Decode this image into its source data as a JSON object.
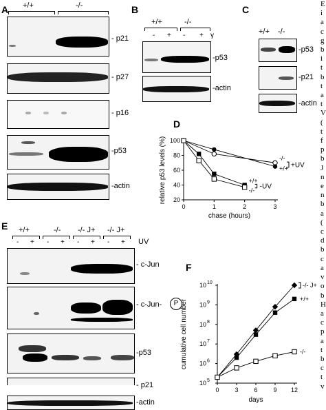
{
  "panels": {
    "A": {
      "letter": "A",
      "genotypes": [
        "+/+",
        "-/-"
      ],
      "blots": [
        "- p21",
        "- p27",
        "- p16",
        "-p53",
        "-actin"
      ]
    },
    "B": {
      "letter": "B",
      "genotypes": [
        "+/+",
        "-/-"
      ],
      "treatment_signs": [
        "-",
        "+",
        "-",
        "+"
      ],
      "treatment_label": "γ",
      "blots": [
        "-p53",
        "-actin"
      ]
    },
    "C": {
      "letter": "C",
      "genotypes": [
        "+/+",
        "-/-"
      ],
      "blots": [
        "-p53",
        "-p21",
        "-actin"
      ]
    },
    "D": {
      "letter": "D",
      "chart_data": {
        "type": "line",
        "xlabel": "chase (hours)",
        "ylabel": "relative p53 levels (%)",
        "xlim": [
          0,
          3
        ],
        "ylim": [
          20,
          100
        ],
        "xticks": [
          "0",
          "1",
          "2",
          "3"
        ],
        "yticks": [
          "20",
          "40",
          "60",
          "80",
          "100"
        ],
        "series": [
          {
            "name": "-/-",
            "marker": "open-circle",
            "x": [
              0,
              1,
              3
            ],
            "y": [
              100,
              82,
              70
            ]
          },
          {
            "name": "+/+",
            "marker": "filled-circle",
            "x": [
              0,
              1,
              3
            ],
            "y": [
              100,
              88,
              65
            ]
          },
          {
            "name": "+/+",
            "marker": "filled-square",
            "x": [
              0,
              0.5,
              1,
              2
            ],
            "y": [
              100,
              82,
              55,
              40
            ]
          },
          {
            "name": "-/-",
            "marker": "open-square",
            "x": [
              0,
              0.5,
              1,
              2
            ],
            "y": [
              100,
              73,
              48,
              37
            ]
          }
        ],
        "annotations": {
          "uv_plus": "+UV",
          "uv_minus": "-UV"
        }
      }
    },
    "E": {
      "letter": "E",
      "genotypes": [
        "+/+",
        "-/-",
        "-/- J+",
        "-/- J+"
      ],
      "uv_signs": [
        "-",
        "+",
        "-",
        "+",
        "-",
        "+",
        "-",
        "+"
      ],
      "uv_label": "UV",
      "blots": [
        "- c-Jun",
        "- c-Jun-",
        "P",
        "-p53",
        "- p21",
        "-actin"
      ]
    },
    "F": {
      "letter": "F",
      "chart_data": {
        "type": "line",
        "scale": "log",
        "xlabel": "days",
        "ylabel": "cumulative cell number",
        "xlim": [
          0,
          12
        ],
        "ylim": [
          100000,
          10000000000
        ],
        "xticks": [
          "0",
          "3",
          "6",
          "9",
          "12"
        ],
        "ytick_values": [
          5,
          6,
          7,
          8,
          9,
          10
        ],
        "series": [
          {
            "name": "-/- J+",
            "marker": "filled-diamond",
            "x": [
              0,
              3,
              6,
              9,
              12
            ],
            "y": [
              200000,
              3000000,
              50000000,
              800000000,
              10000000000
            ]
          },
          {
            "name": "+/+",
            "marker": "filled-square",
            "x": [
              0,
              3,
              6,
              9,
              12
            ],
            "y": [
              200000,
              2000000,
              30000000,
              400000000,
              2000000000
            ]
          },
          {
            "name": "-/-",
            "marker": "open-square",
            "x": [
              0,
              3,
              6,
              9,
              12
            ],
            "y": [
              200000,
              600000,
              1300000,
              2500000,
              4000000
            ]
          }
        ]
      }
    }
  },
  "side_text": [
    "E",
    "i",
    "a",
    "c",
    "g",
    "b",
    "i",
    "t",
    "b",
    "t",
    "a",
    "t",
    "V",
    "(",
    "t",
    "f",
    "p",
    "b",
    "J",
    "n",
    "e",
    "n",
    "b",
    "a",
    "(",
    "c",
    "d",
    "b",
    "c",
    "a",
    "v",
    "o",
    "b",
    "H",
    "a",
    "c",
    "p",
    "a",
    "t",
    "b",
    "c",
    "t",
    "v"
  ]
}
